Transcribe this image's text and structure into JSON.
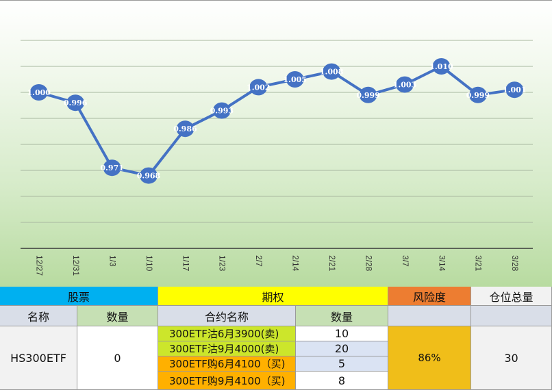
{
  "chart_data": {
    "type": "line",
    "categories": [
      "12/27",
      "12/31",
      "1/3",
      "1/10",
      "1/17",
      "1/23",
      "2/7",
      "2/14",
      "2/21",
      "2/28",
      "3/7",
      "3/14",
      "3/21",
      "3/28"
    ],
    "series": [
      {
        "values": [
          1.0,
          0.996,
          0.971,
          0.968,
          0.986,
          0.993,
          1.002,
          1.005,
          1.008,
          0.999,
          1.003,
          1.01,
          0.999,
          1.001
        ]
      }
    ],
    "value_labels": [
      "1.000",
      "0.996",
      "0.971",
      "0.968",
      "0.986",
      "0.993",
      "1.002",
      "1.005",
      "1.008",
      "0.999",
      "1.003",
      "1.010",
      "0.999",
      "1.001"
    ],
    "ylim": [
      0.94,
      1.02
    ],
    "grid": true,
    "colors": {
      "line": "#4472c4",
      "marker": "#4472c4",
      "label": "#ffffff",
      "grid": "#a8b8a0"
    }
  },
  "table": {
    "headers": {
      "stock": "股票",
      "options": "期权",
      "risk": "风险度",
      "total_position": "仓位总量"
    },
    "subheaders": {
      "stock_name": "名称",
      "stock_qty": "数量",
      "contract_name": "合约名称",
      "option_qty": "数量"
    },
    "stock": {
      "name": "HS300ETF",
      "qty": "0"
    },
    "options": [
      {
        "name": "300ETF沽6月3900(卖)",
        "qty": "10"
      },
      {
        "name": "300ETF沽9月4000(卖)",
        "qty": "20"
      },
      {
        "name": "300ETF购6月4100（买)",
        "qty": "5"
      },
      {
        "name": "300ETF购9月4100（买)",
        "qty": "8"
      }
    ],
    "risk": "86%",
    "total_position": "30",
    "colors": {
      "stock_header": "#00b0f0",
      "options_header": "#ffff00",
      "risk_header": "#ed7d31",
      "total_header": "#f2f2f2",
      "subheader_gray": "#d9dee8",
      "subheader_green": "#c6e0b4",
      "put_fill": "#cce62b",
      "call_fill": "#ffb000",
      "qty_white": "#ffffff",
      "qty_blue": "#dae3f3",
      "risk_fill": "#f0be19",
      "total_fill": "#f2f2f2"
    }
  }
}
